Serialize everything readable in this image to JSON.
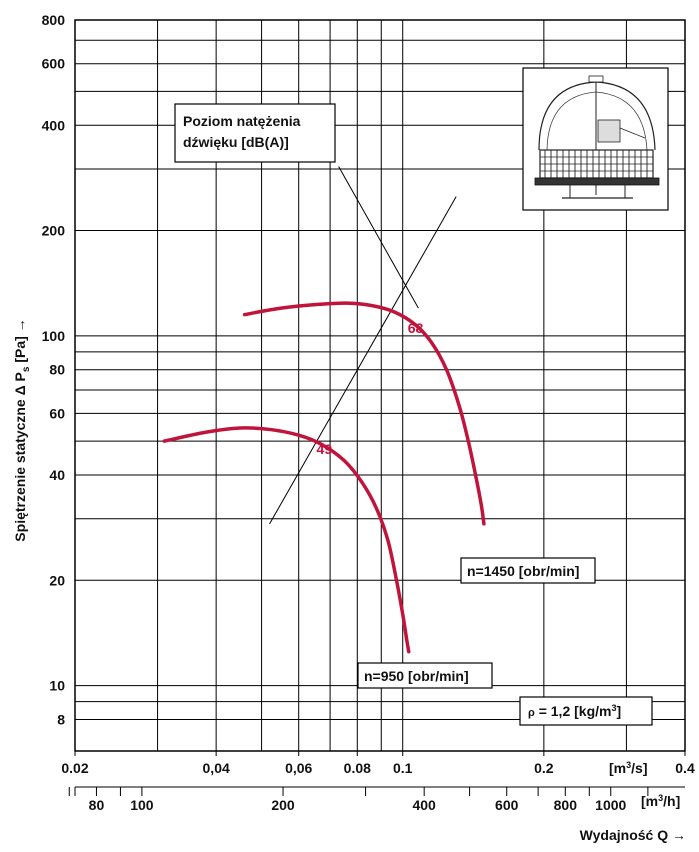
{
  "chart_data": {
    "type": "line",
    "ylabel": "Spiętrzenie statyczne Δ P",
    "ylabel_sub": "s",
    "ylabel_unit": " [Pa] →",
    "xlabel": "Wydajność Q →",
    "x_unit_top": "[m³/s]",
    "x_unit_bottom": "[m³/h]",
    "x_scale": "log",
    "y_scale": "log",
    "xlim": [
      0.02,
      0.4
    ],
    "ylim": [
      6.5,
      800
    ],
    "grid": true,
    "y_ticks": [
      {
        "v": 8,
        "label": "8"
      },
      {
        "v": 10,
        "label": "10"
      },
      {
        "v": 20,
        "label": "20"
      },
      {
        "v": 40,
        "label": "40"
      },
      {
        "v": 60,
        "label": "60"
      },
      {
        "v": 80,
        "label": "80"
      },
      {
        "v": 100,
        "label": "100"
      },
      {
        "v": 200,
        "label": "200"
      },
      {
        "v": 400,
        "label": "400"
      },
      {
        "v": 600,
        "label": "600"
      },
      {
        "v": 800,
        "label": "800"
      }
    ],
    "x_ticks_top": [
      {
        "v": 0.02,
        "label": "0.02"
      },
      {
        "v": 0.04,
        "label": "0,04"
      },
      {
        "v": 0.06,
        "label": "0,06"
      },
      {
        "v": 0.08,
        "label": "0.08"
      },
      {
        "v": 0.1,
        "label": "0.1"
      },
      {
        "v": 0.2,
        "label": "0.2"
      },
      {
        "v": 0.4,
        "label": "0.4"
      }
    ],
    "x_ticks_bottom": [
      {
        "v": 80,
        "label": "80"
      },
      {
        "v": 100,
        "label": "100"
      },
      {
        "v": 200,
        "label": "200"
      },
      {
        "v": 400,
        "label": "400"
      },
      {
        "v": 600,
        "label": "600"
      },
      {
        "v": 800,
        "label": "800"
      },
      {
        "v": 1000,
        "label": "1000"
      }
    ],
    "series": [
      {
        "name": "n=1450 [obr/min]",
        "color": "#c0143c",
        "points": [
          [
            0.046,
            115
          ],
          [
            0.055,
            120
          ],
          [
            0.066,
            123
          ],
          [
            0.076,
            124
          ],
          [
            0.086,
            122
          ],
          [
            0.096,
            117
          ],
          [
            0.106,
            108
          ],
          [
            0.115,
            96
          ],
          [
            0.124,
            80
          ],
          [
            0.132,
            63
          ],
          [
            0.138,
            50
          ],
          [
            0.143,
            40
          ],
          [
            0.147,
            33
          ],
          [
            0.149,
            29
          ]
        ]
      },
      {
        "name": "n=950 [obr/min]",
        "color": "#c0143c",
        "points": [
          [
            0.031,
            50
          ],
          [
            0.038,
            53
          ],
          [
            0.045,
            54.5
          ],
          [
            0.052,
            54
          ],
          [
            0.06,
            52
          ],
          [
            0.067,
            49
          ],
          [
            0.075,
            44
          ],
          [
            0.082,
            38
          ],
          [
            0.088,
            32
          ],
          [
            0.093,
            26
          ],
          [
            0.097,
            20
          ],
          [
            0.1,
            16
          ],
          [
            0.102,
            13.5
          ],
          [
            0.103,
            12.5
          ]
        ]
      }
    ],
    "sound_line": {
      "from": [
        0.052,
        29
      ],
      "to": [
        0.13,
        250
      ]
    },
    "leader_line": {
      "from": [
        0.073,
        305
      ],
      "to": [
        0.108,
        120
      ]
    },
    "point_labels": [
      {
        "text": "68",
        "x": 0.1025,
        "y": 102
      },
      {
        "text": "49",
        "x": 0.0655,
        "y": 46
      }
    ],
    "annotations": {
      "sound_box": [
        "Poziom natężenia",
        "dźwięku [dB(A)]"
      ],
      "n1450": "n=1450 [obr/min]",
      "n950": "n=950 [obr/min]",
      "density": [
        "ρ",
        " = 1,2 [kg/m",
        "3",
        "]"
      ]
    }
  }
}
